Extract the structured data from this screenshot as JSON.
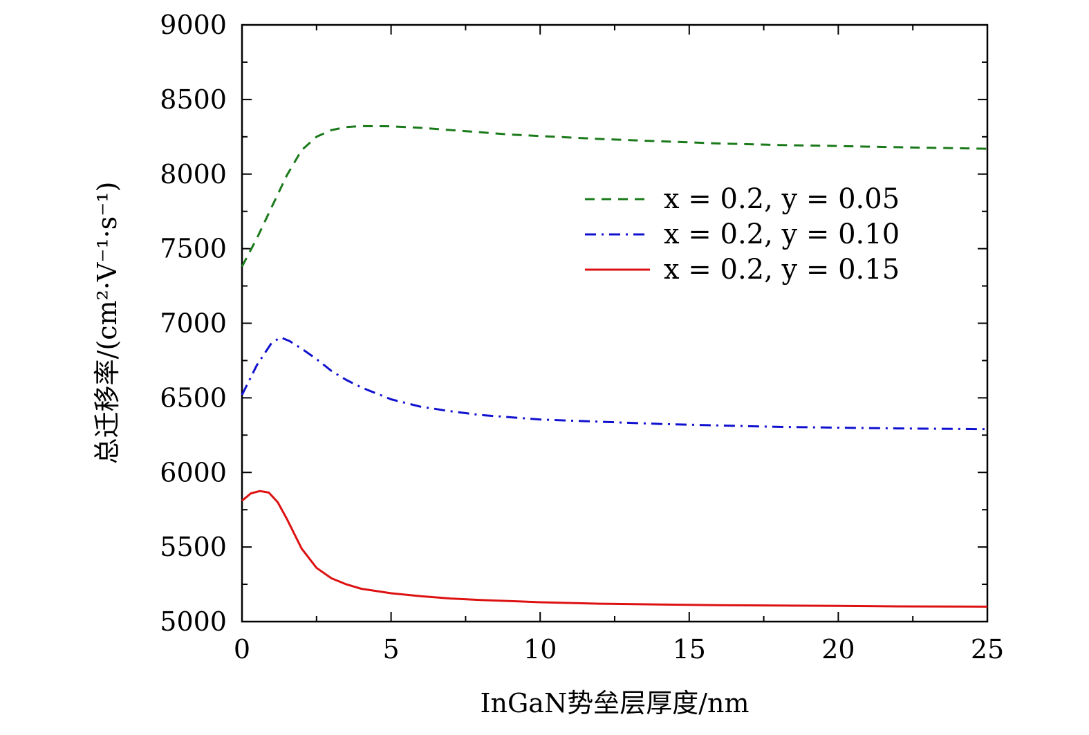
{
  "chart_data": {
    "type": "line",
    "xlabel": "InGaN势垒层厚度/nm",
    "ylabel": "总迁移率/(cm²·V⁻¹·s⁻¹)",
    "xlim": [
      0,
      25
    ],
    "ylim": [
      5000,
      9000
    ],
    "xticks": [
      "0",
      "5",
      "10",
      "15",
      "20",
      "25"
    ],
    "yticks": [
      "5000",
      "5500",
      "6000",
      "6500",
      "7000",
      "7500",
      "8000",
      "8500",
      "9000"
    ],
    "grid": false,
    "legend_position": "right",
    "series": [
      {
        "name": "x = 0.2,  y = 0.05",
        "color": "#1a7a1a",
        "style": "dashed",
        "x": [
          0,
          0.5,
          1,
          1.5,
          2,
          2.5,
          3,
          3.5,
          4,
          5,
          6,
          7,
          8,
          9,
          10,
          12,
          14,
          16,
          18,
          20,
          22,
          25
        ],
        "y": [
          7380,
          7570,
          7780,
          7990,
          8160,
          8250,
          8295,
          8315,
          8322,
          8320,
          8310,
          8295,
          8280,
          8265,
          8255,
          8235,
          8220,
          8205,
          8195,
          8188,
          8180,
          8170
        ]
      },
      {
        "name": "x = 0.2,  y = 0.10",
        "color": "#1010d0",
        "style": "dashdot",
        "x": [
          0,
          0.5,
          1,
          1.3,
          1.6,
          2,
          2.5,
          3,
          3.5,
          4,
          5,
          6,
          7,
          8,
          10,
          12,
          14,
          16,
          18,
          20,
          22,
          25
        ],
        "y": [
          6520,
          6720,
          6870,
          6905,
          6880,
          6830,
          6760,
          6680,
          6620,
          6570,
          6490,
          6440,
          6410,
          6385,
          6355,
          6340,
          6325,
          6315,
          6305,
          6300,
          6295,
          6290
        ]
      },
      {
        "name": "x = 0.2,  y = 0.15",
        "color": "#dd1111",
        "style": "solid",
        "x": [
          0,
          0.3,
          0.6,
          0.9,
          1.2,
          1.5,
          2,
          2.5,
          3,
          3.5,
          4,
          5,
          6,
          7,
          8,
          10,
          12,
          14,
          16,
          18,
          20,
          22,
          25
        ],
        "y": [
          5810,
          5860,
          5875,
          5865,
          5800,
          5690,
          5490,
          5360,
          5290,
          5250,
          5220,
          5190,
          5170,
          5155,
          5145,
          5130,
          5120,
          5115,
          5110,
          5108,
          5105,
          5102,
          5100
        ]
      }
    ]
  }
}
